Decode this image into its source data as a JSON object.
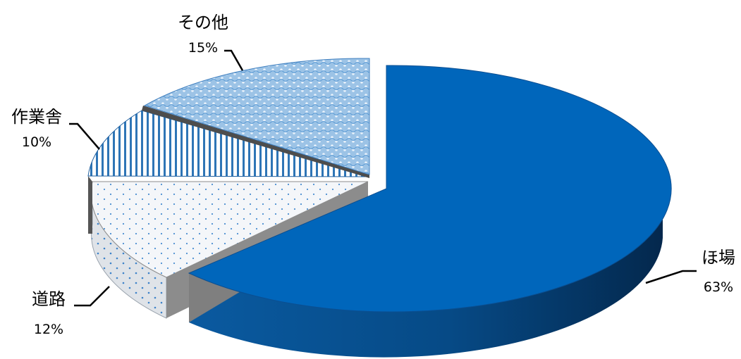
{
  "chart_data": {
    "type": "pie",
    "style": "3d-exploded",
    "title": "",
    "slices": [
      {
        "label": "ほ場",
        "value": 63,
        "pct_label": "63%",
        "color": "#0066bb",
        "pattern": "solid"
      },
      {
        "label": "道路",
        "value": 12,
        "pct_label": "12%",
        "color": "#5b9bd5",
        "pattern": "dots"
      },
      {
        "label": "作業舎",
        "value": 10,
        "pct_label": "10%",
        "color": "#2e75b6",
        "pattern": "vertical-lines"
      },
      {
        "label": "その他",
        "value": 15,
        "pct_label": "15%",
        "color": "#5b9bd5",
        "pattern": "weave"
      }
    ],
    "legend": "none",
    "label_placement": "outside-with-leader-lines"
  }
}
